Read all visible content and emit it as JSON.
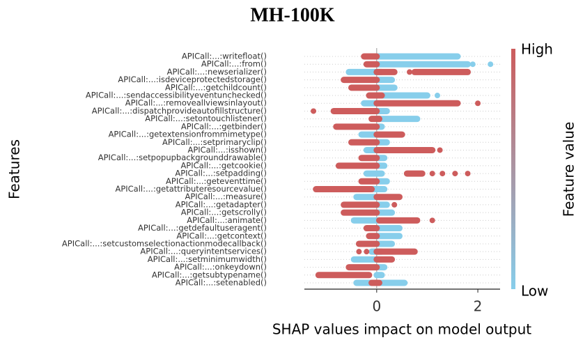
{
  "chart_data": {
    "type": "beeswarm",
    "title": "MH-100K",
    "xlabel": "SHAP values impact on model output",
    "ylabel": "Features",
    "colorbar": {
      "label": "Feature value",
      "high": "High",
      "low": "Low",
      "high_color": "#cd5c5c",
      "low_color": "#87ceeb"
    },
    "xlim": [
      -1.43,
      2.44
    ],
    "xticks": [
      0,
      2
    ],
    "features": [
      {
        "name": "APICall:...:writefloat()",
        "spans": [
          [
            0.0,
            1.6,
            0
          ],
          [
            -0.25,
            0.0,
            1
          ]
        ],
        "points": []
      },
      {
        "name": "APICall:...:from()",
        "spans": [
          [
            0.0,
            1.8,
            0
          ],
          [
            -0.2,
            0.0,
            1
          ]
        ],
        "points": [
          [
            1.9,
            0
          ],
          [
            2.25,
            0
          ]
        ]
      },
      {
        "name": "APICall:...:newserializer()",
        "spans": [
          [
            -0.55,
            0.1,
            0
          ],
          [
            0.0,
            0.35,
            1
          ],
          [
            0.75,
            1.8,
            1
          ]
        ],
        "points": [
          [
            0.65,
            1
          ]
        ]
      },
      {
        "name": "APICall:...:isdeviceprotectedstorage()",
        "spans": [
          [
            0.0,
            0.3,
            0
          ],
          [
            -0.65,
            0.0,
            1
          ]
        ],
        "points": []
      },
      {
        "name": "APICall:...:getchildcount()",
        "spans": [
          [
            0.0,
            0.35,
            0
          ],
          [
            -0.5,
            0.0,
            1
          ]
        ],
        "points": []
      },
      {
        "name": "APICall:...:sendaccessibilityeventunchecked()",
        "spans": [
          [
            0.0,
            1.0,
            0
          ],
          [
            -0.15,
            0.1,
            1
          ]
        ],
        "points": [
          [
            1.2,
            0
          ]
        ]
      },
      {
        "name": "APICall:...:removeallviewsinlayout()",
        "spans": [
          [
            -0.25,
            0.0,
            0
          ],
          [
            0.0,
            1.6,
            1
          ]
        ],
        "points": [
          [
            2.0,
            1
          ]
        ]
      },
      {
        "name": "APICall:...:dispatchprovideautofillstructure()",
        "spans": [
          [
            0.0,
            0.2,
            0
          ],
          [
            -0.85,
            0.0,
            1
          ]
        ],
        "points": [
          [
            -1.25,
            1
          ]
        ]
      },
      {
        "name": "APICall:...:setontouchlistener()",
        "spans": [
          [
            0.0,
            0.8,
            0
          ],
          [
            -0.1,
            0.05,
            1
          ]
        ],
        "points": []
      },
      {
        "name": "APICall:...:getbinder()",
        "spans": [
          [
            0.0,
            0.1,
            0
          ],
          [
            -0.8,
            0.0,
            1
          ]
        ],
        "points": []
      },
      {
        "name": "APICall:...:getextensionfrommimetype()",
        "spans": [
          [
            -0.3,
            0.0,
            0
          ],
          [
            0.0,
            0.5,
            1
          ]
        ],
        "points": []
      },
      {
        "name": "APICall:...:setprimaryclip()",
        "spans": [
          [
            0.0,
            0.2,
            0
          ],
          [
            -0.5,
            0.0,
            1
          ]
        ],
        "points": []
      },
      {
        "name": "APICall:...:isshown()",
        "spans": [
          [
            -0.2,
            0.0,
            0
          ],
          [
            0.0,
            1.1,
            1
          ]
        ],
        "points": [
          [
            1.25,
            1
          ]
        ]
      },
      {
        "name": "APICall:...:setpopupbackgrounddrawable()",
        "spans": [
          [
            0.0,
            0.15,
            0
          ],
          [
            -0.3,
            0.0,
            1
          ]
        ],
        "points": []
      },
      {
        "name": "APICall:...:getcookie()",
        "spans": [
          [
            0.0,
            0.15,
            0
          ],
          [
            -0.75,
            0.0,
            1
          ]
        ],
        "points": []
      },
      {
        "name": "APICall:...:setpadding()",
        "spans": [
          [
            -0.2,
            0.1,
            0
          ],
          [
            0.6,
            0.9,
            1
          ]
        ],
        "points": [
          [
            1.1,
            1
          ],
          [
            1.3,
            1
          ],
          [
            1.55,
            1
          ],
          [
            1.8,
            1
          ]
        ]
      },
      {
        "name": "APICall:...:geteventtime()",
        "spans": [
          [
            0.0,
            0.2,
            0
          ],
          [
            -0.3,
            0.0,
            1
          ]
        ],
        "points": []
      },
      {
        "name": "APICall:...:getattributeresourcevalue()",
        "spans": [
          [
            -0.1,
            0.15,
            0
          ],
          [
            -1.2,
            -0.1,
            1
          ]
        ],
        "points": []
      },
      {
        "name": "APICall:...:measure()",
        "spans": [
          [
            -0.4,
            0.0,
            0
          ],
          [
            0.0,
            0.45,
            1
          ]
        ],
        "points": []
      },
      {
        "name": "APICall:...:getadapter()",
        "spans": [
          [
            0.0,
            0.2,
            0
          ],
          [
            -0.65,
            0.0,
            1
          ]
        ],
        "points": [
          [
            0.35,
            1
          ]
        ]
      },
      {
        "name": "APICall:...:getscrolly()",
        "spans": [
          [
            0.0,
            0.3,
            0
          ],
          [
            -0.65,
            0.0,
            1
          ]
        ],
        "points": []
      },
      {
        "name": "APICall:...:animate()",
        "spans": [
          [
            -0.45,
            0.05,
            0
          ],
          [
            0.05,
            0.8,
            1
          ]
        ],
        "points": [
          [
            1.1,
            1
          ]
        ]
      },
      {
        "name": "APICall:...:getdefaultuseragent()",
        "spans": [
          [
            0.0,
            0.45,
            0
          ],
          [
            -0.2,
            0.0,
            1
          ]
        ],
        "points": []
      },
      {
        "name": "APICall:...:getcontext()",
        "spans": [
          [
            0.0,
            0.45,
            0
          ],
          [
            -0.15,
            0.0,
            1
          ]
        ],
        "points": []
      },
      {
        "name": "APICall:...:setcustomselectionactionmodecallback()",
        "spans": [
          [
            0.0,
            0.3,
            0
          ],
          [
            -0.35,
            0.0,
            1
          ]
        ],
        "points": []
      },
      {
        "name": "APICall:...:queryintentservices()",
        "spans": [
          [
            -0.1,
            0.1,
            0
          ],
          [
            0.0,
            0.75,
            1
          ]
        ],
        "points": [
          [
            -0.35,
            1
          ],
          [
            -0.2,
            1
          ]
        ]
      },
      {
        "name": "APICall:...:setminimumwidth()",
        "spans": [
          [
            -0.45,
            0.05,
            0
          ],
          [
            0.0,
            0.3,
            1
          ]
        ],
        "points": []
      },
      {
        "name": "APICall:...:onkeydown()",
        "spans": [
          [
            0.0,
            0.15,
            0
          ],
          [
            -0.55,
            0.0,
            1
          ]
        ],
        "points": []
      },
      {
        "name": "APICall:...:getsubtypename()",
        "spans": [
          [
            0.0,
            0.1,
            0
          ],
          [
            -1.15,
            -0.15,
            1
          ]
        ],
        "points": []
      },
      {
        "name": "APICall:...:setenabled()",
        "spans": [
          [
            -0.4,
            0.55,
            0
          ],
          [
            -0.1,
            0.05,
            1
          ]
        ],
        "points": []
      }
    ]
  }
}
